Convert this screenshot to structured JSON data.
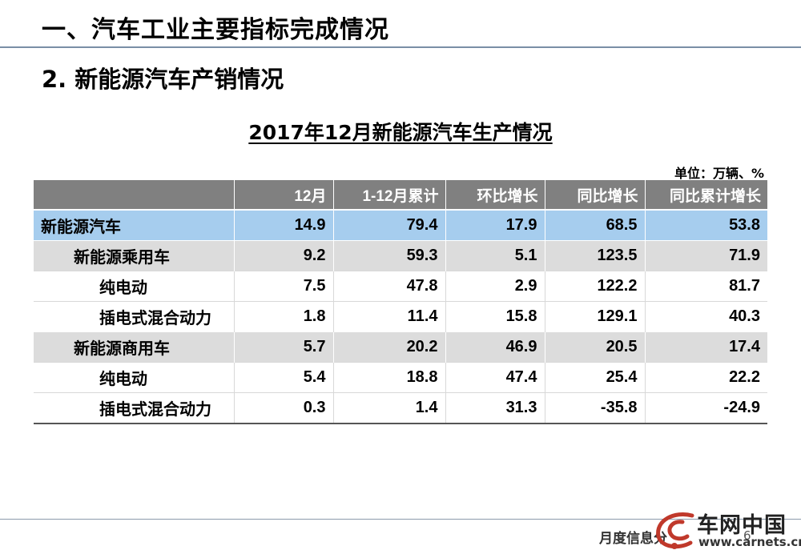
{
  "section_title": "一、汽车工业主要指标完成情况",
  "sub_title": "2. 新能源汽车产销情况",
  "table_title": "2017年12月新能源汽车生产情况",
  "unit": "单位：万辆、%",
  "table": {
    "headers": [
      "",
      "12月",
      "1-12月累计",
      "环比增长",
      "同比增长",
      "同比累计增长"
    ],
    "rows": [
      {
        "level": 0,
        "cells": [
          "新能源汽车",
          "14.9",
          "79.4",
          "17.9",
          "68.5",
          "53.8"
        ]
      },
      {
        "level": 1,
        "cells": [
          "新能源乘用车",
          "9.2",
          "59.3",
          "5.1",
          "123.5",
          "71.9"
        ]
      },
      {
        "level": 2,
        "cells": [
          "纯电动",
          "7.5",
          "47.8",
          "2.9",
          "122.2",
          "81.7"
        ]
      },
      {
        "level": 2,
        "cells": [
          "插电式混合动力",
          "1.8",
          "11.4",
          "15.8",
          "129.1",
          "40.3"
        ]
      },
      {
        "level": 1,
        "cells": [
          "新能源商用车",
          "5.7",
          "20.2",
          "46.9",
          "20.5",
          "17.4"
        ]
      },
      {
        "level": 2,
        "cells": [
          "纯电动",
          "5.4",
          "18.8",
          "47.4",
          "25.4",
          "22.2"
        ]
      },
      {
        "level": 2,
        "cells": [
          "插电式混合动力",
          "0.3",
          "1.4",
          "31.3",
          "-35.8",
          "-24.9"
        ]
      }
    ]
  },
  "footer": {
    "report_label": "月度信息分",
    "page_number": "6",
    "logo_text": "车网中国",
    "logo_url": "www.carnets.cn",
    "logo_color": "#c0392b"
  }
}
